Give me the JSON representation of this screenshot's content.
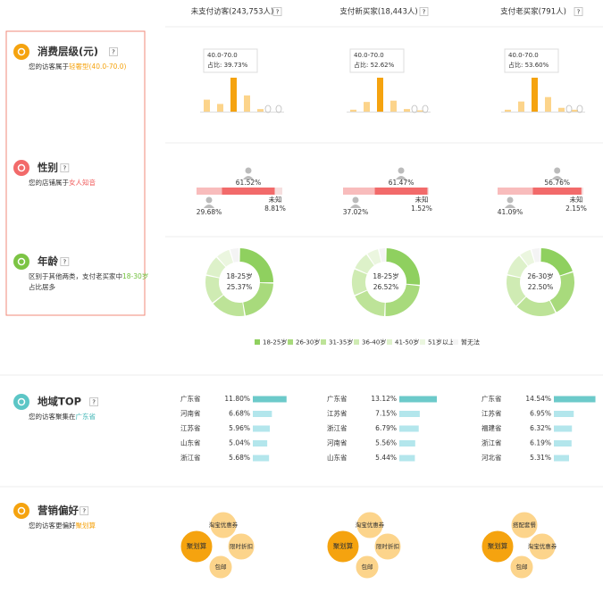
{
  "help_icon": "?",
  "columns": [
    "未支付访客(243,753人)",
    "支付新买家(18,443人)",
    "支付老买家(791人)"
  ],
  "consumption": {
    "title": "消费层级(元)",
    "desc": "您的访客属于",
    "highlight": "轻奢型(40.0-70.0)",
    "color": "#fcd48b",
    "highlight_color": "#f5a30f",
    "text_color": "#f5a30f",
    "charts": [
      {
        "values": [
          14,
          9,
          39.73,
          19,
          3
        ],
        "highlight": 2,
        "tooltip": [
          "40.0-70.0",
          "占比: 39.73%"
        ]
      },
      {
        "values": [
          3,
          15,
          52.62,
          17,
          4,
          2
        ],
        "highlight": 2,
        "tooltip": [
          "40.0-70.0",
          "占比: 52.62%"
        ]
      },
      {
        "values": [
          3,
          16,
          53.6,
          23,
          6,
          3
        ],
        "highlight": 2,
        "tooltip": [
          "40.0-70.0",
          "占比: 53.60%"
        ]
      }
    ]
  },
  "gender": {
    "title": "性别",
    "desc": "您的店铺属于",
    "highlight": "女人知音",
    "text_color": "#f05a5a",
    "unknown_label": "未知",
    "colors": [
      "#f8bcbc",
      "#f26a6a",
      "#f6dede"
    ],
    "charts": [
      {
        "values": [
          29.68,
          61.52,
          8.81
        ],
        "value_labels": [
          "29.68%",
          "61.52%",
          "8.81%"
        ]
      },
      {
        "values": [
          37.02,
          61.47,
          1.52
        ],
        "value_labels": [
          "37.02%",
          "61.47%",
          "1.52%"
        ]
      },
      {
        "values": [
          41.09,
          56.76,
          2.15
        ],
        "value_labels": [
          "41.09%",
          "56.76%",
          "2.15%"
        ]
      }
    ]
  },
  "age": {
    "title": "年龄",
    "desc": "区别于其他两类，支付老买家中",
    "highlight": "18-30岁",
    "tail": "占比居多",
    "text_color": "#6fbf3b",
    "legend": [
      "18-25岁",
      "26-30岁",
      "31-35岁",
      "36-40岁",
      "41-50岁",
      "51岁以上",
      "暂无法"
    ],
    "colors": [
      "#8fd05f",
      "#a8da7c",
      "#bde398",
      "#cfebb3",
      "#ddf1c9",
      "#ebf6df",
      "#f4f4f4"
    ],
    "charts": [
      {
        "values": [
          25.37,
          22,
          17,
          14,
          10,
          7,
          4.63
        ],
        "center_label": "18-25岁",
        "center_value": "25.37%"
      },
      {
        "values": [
          26.52,
          24,
          18,
          13,
          9,
          6,
          3.48
        ],
        "center_label": "18-25岁",
        "center_value": "26.52%"
      },
      {
        "values": [
          20,
          22.5,
          20,
          16,
          11,
          6,
          4.5
        ],
        "center_label": "26-30岁",
        "center_value": "22.50%"
      }
    ]
  },
  "region": {
    "title": "地域TOP",
    "desc": "您的访客聚集在",
    "highlight": "广东省",
    "text_color": "#3fb6b6",
    "colors": [
      "#6ccaca",
      "#b3e6ec"
    ],
    "charts": [
      {
        "categories": [
          "广东省",
          "河南省",
          "江苏省",
          "山东省",
          "浙江省"
        ],
        "values": [
          11.8,
          6.68,
          5.96,
          5.04,
          5.68
        ],
        "value_labels": [
          "11.80%",
          "6.68%",
          "5.96%",
          "5.04%",
          "5.68%"
        ]
      },
      {
        "categories": [
          "广东省",
          "江苏省",
          "浙江省",
          "河南省",
          "山东省"
        ],
        "values": [
          13.12,
          7.15,
          6.79,
          5.56,
          5.44
        ],
        "value_labels": [
          "13.12%",
          "7.15%",
          "6.79%",
          "5.56%",
          "5.44%"
        ]
      },
      {
        "categories": [
          "广东省",
          "江苏省",
          "福建省",
          "浙江省",
          "河北省"
        ],
        "values": [
          14.54,
          6.95,
          6.32,
          6.19,
          5.31
        ],
        "value_labels": [
          "14.54%",
          "6.95%",
          "6.32%",
          "6.19%",
          "5.31%"
        ]
      }
    ]
  },
  "marketing": {
    "title": "营销偏好",
    "desc": "您的访客更偏好",
    "highlight": "聚划算",
    "text_color": "#f5a30f",
    "colors": [
      "#f5a30f",
      "#fcd48b"
    ],
    "charts": [
      {
        "main": "聚划算",
        "others": [
          "淘宝优惠券",
          "限时折扣",
          "包邮"
        ]
      },
      {
        "main": "聚划算",
        "others": [
          "淘宝优惠券",
          "限时折扣",
          "包邮"
        ]
      },
      {
        "main": "聚划算",
        "others": [
          "搭配套餐",
          "淘宝优惠券",
          "包邮"
        ]
      }
    ]
  }
}
